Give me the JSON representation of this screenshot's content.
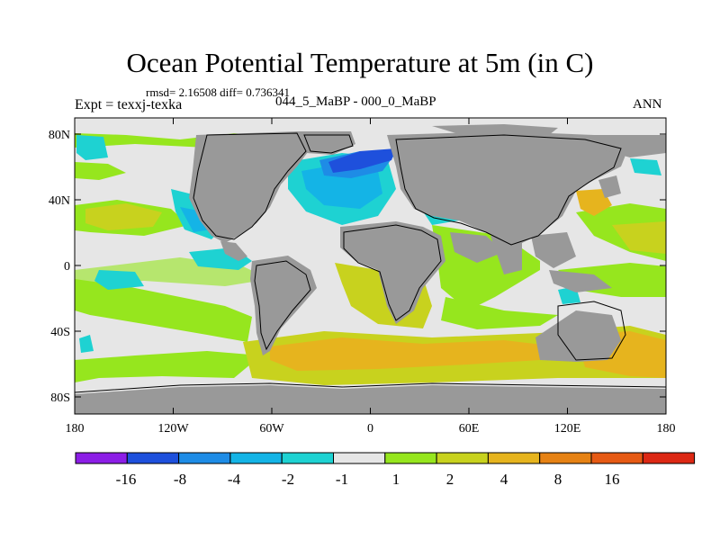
{
  "header": {
    "title": "Ocean Potential Temperature at 5m (in C)",
    "stats": "rmsd= 2.16508 diff= 0.736341",
    "experiment": "Expt = texxj-texka",
    "comparison": "044_5_MaBP - 000_0_MaBP",
    "season": "ANN"
  },
  "axes": {
    "y_ticks": [
      "80N",
      "40N",
      "0",
      "40S",
      "80S"
    ],
    "x_ticks": [
      "180",
      "120W",
      "60W",
      "0",
      "60E",
      "120E",
      "180"
    ]
  },
  "colorbar": {
    "labels": [
      "-16",
      "-8",
      "-4",
      "-2",
      "-1",
      "1",
      "2",
      "4",
      "8",
      "16"
    ],
    "colors": [
      "#8c1ee6",
      "#1e50dc",
      "#1e8ce6",
      "#14b4e6",
      "#1ed2d2",
      "#e6e6e6",
      "#96e61e",
      "#c8d21e",
      "#e6b41e",
      "#e68214",
      "#e65a14",
      "#dc2814"
    ]
  },
  "palette": {
    "land": "#999999",
    "neutral": "#e6e6e6"
  }
}
